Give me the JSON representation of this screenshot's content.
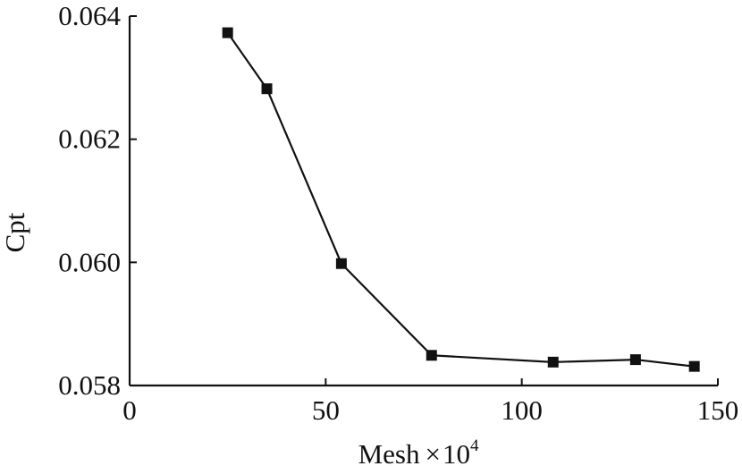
{
  "chart_data": {
    "type": "line",
    "xlabel": "Mesh",
    "xlabel_operator": "×",
    "xlabel_base": "10",
    "xlabel_exponent": "4",
    "ylabel": "Cpt",
    "xlim": [
      0,
      150
    ],
    "ylim": [
      0.058,
      0.064
    ],
    "xticks": [
      0,
      50,
      100,
      150
    ],
    "xtick_labels": [
      "0",
      "50",
      "100",
      "150"
    ],
    "yticks": [
      0.058,
      0.06,
      0.062,
      0.064
    ],
    "ytick_labels": [
      "0.058",
      "0.060",
      "0.062",
      "0.064"
    ],
    "grid": false,
    "marker": "square",
    "colors": {
      "line": "#111111",
      "marker": "#111111",
      "axis": "#111111"
    },
    "series": [
      {
        "x": [
          25,
          35,
          54,
          77,
          108,
          129,
          144
        ],
        "y": [
          0.06373,
          0.06282,
          0.05998,
          0.05849,
          0.05838,
          0.05842,
          0.05831
        ]
      }
    ]
  }
}
